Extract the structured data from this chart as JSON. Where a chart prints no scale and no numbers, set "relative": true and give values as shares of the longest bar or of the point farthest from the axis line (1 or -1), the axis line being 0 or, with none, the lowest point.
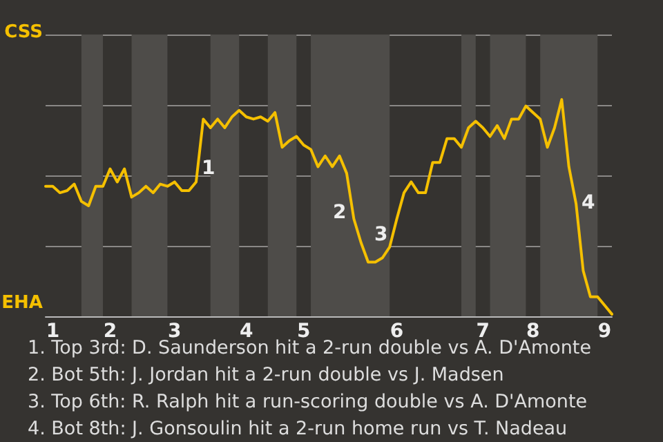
{
  "chart_data": {
    "type": "line",
    "relative": true,
    "categories": [
      null,
      "1",
      null,
      null,
      null,
      null,
      null,
      null,
      null,
      "2",
      null,
      null,
      null,
      null,
      null,
      null,
      null,
      null,
      "3",
      null,
      null,
      null,
      null,
      null,
      null,
      null,
      null,
      null,
      "4",
      null,
      null,
      null,
      null,
      null,
      null,
      null,
      "5",
      null,
      null,
      null,
      null,
      null,
      null,
      null,
      null,
      null,
      null,
      null,
      null,
      "6",
      null,
      null,
      null,
      null,
      null,
      null,
      null,
      null,
      null,
      null,
      null,
      "7",
      null,
      null,
      null,
      null,
      null,
      null,
      "8",
      null,
      null,
      null,
      null,
      null,
      null,
      null,
      null,
      null,
      "9",
      null
    ],
    "series": [
      {
        "color": "#f5c000",
        "values": [
          0.6,
          0.6,
          0.57,
          0.58,
          0.61,
          0.53,
          0.51,
          0.6,
          0.6,
          0.68,
          0.62,
          0.68,
          0.55,
          0.57,
          0.6,
          0.57,
          0.61,
          0.6,
          0.62,
          0.58,
          0.58,
          0.62,
          0.91,
          0.87,
          0.91,
          0.87,
          0.92,
          0.95,
          0.92,
          0.91,
          0.92,
          0.9,
          0.94,
          0.78,
          0.81,
          0.83,
          0.79,
          0.77,
          0.69,
          0.74,
          0.69,
          0.74,
          0.66,
          0.45,
          0.34,
          0.25,
          0.25,
          0.27,
          0.32,
          0.45,
          0.57,
          0.62,
          0.57,
          0.57,
          0.71,
          0.71,
          0.82,
          0.82,
          0.78,
          0.87,
          0.9,
          0.87,
          0.83,
          0.88,
          0.82,
          0.91,
          0.91,
          0.97,
          0.94,
          0.91,
          0.78,
          0.87,
          1,
          0.69,
          0.52,
          0.21,
          0.09,
          0.09,
          0.05,
          0.01
        ]
      }
    ],
    "grid": "y",
    "marker": "none",
    "line_style": "solid",
    "annotations": [
      "CSS",
      "EHA",
      "1",
      "2",
      "3",
      "4",
      "1. Top 3rd: D. Saunderson hit a 2-run double vs A. D'Amonte",
      "2. Bot 5th: J. Jordan hit a 2-run double vs J. Madsen",
      "3. Top 6th: R. Ralph hit a run-scoring double vs A. D'Amonte",
      "4. Bot 8th: J. Gonsoulin hit a 2-run home run vs T. Nadeau"
    ]
  }
}
